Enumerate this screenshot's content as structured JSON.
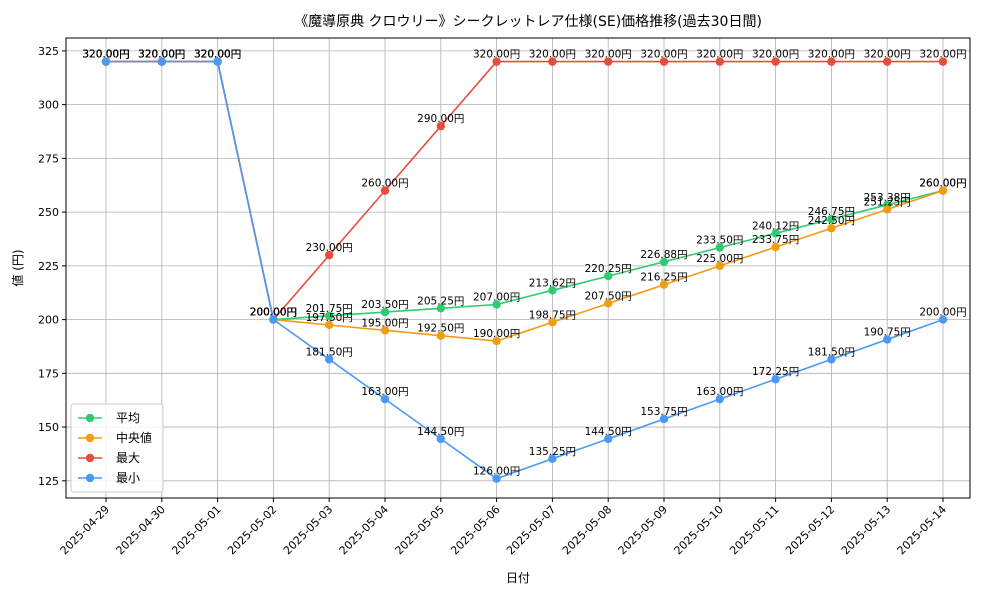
{
  "chart_data": {
    "type": "line",
    "title": "《魔導原典 クロウリー》シークレットレア仕様(SE)価格推移(過去30日間)",
    "xlabel": "日付",
    "ylabel": "値 (円)",
    "ylim": [
      117,
      331
    ],
    "yticks": [
      125,
      150,
      175,
      200,
      225,
      250,
      275,
      300,
      325
    ],
    "grid": true,
    "legend_position": "lower-left",
    "label_suffix": "円",
    "x": [
      "2025-04-29",
      "2025-04-30",
      "2025-05-01",
      "2025-05-02",
      "2025-05-03",
      "2025-05-04",
      "2025-05-05",
      "2025-05-06",
      "2025-05-07",
      "2025-05-08",
      "2025-05-09",
      "2025-05-10",
      "2025-05-11",
      "2025-05-12",
      "2025-05-13",
      "2025-05-14"
    ],
    "series": [
      {
        "name": "平均",
        "color": "#2ecc71",
        "values": [
          320.0,
          320.0,
          320.0,
          200.0,
          201.75,
          203.5,
          205.25,
          207.0,
          213.62,
          220.25,
          226.88,
          233.5,
          240.12,
          246.75,
          253.38,
          260.0
        ]
      },
      {
        "name": "中央値",
        "color": "#f39c12",
        "values": [
          320.0,
          320.0,
          320.0,
          200.0,
          197.5,
          195.0,
          192.5,
          190.0,
          198.75,
          207.5,
          216.25,
          225.0,
          233.75,
          242.5,
          251.25,
          260.0
        ]
      },
      {
        "name": "最大",
        "color": "#e74c3c",
        "values": [
          320.0,
          320.0,
          320.0,
          200.0,
          230.0,
          260.0,
          290.0,
          320.0,
          320.0,
          320.0,
          320.0,
          320.0,
          320.0,
          320.0,
          320.0,
          320.0
        ]
      },
      {
        "name": "最小",
        "color": "#4a9af5",
        "values": [
          320.0,
          320.0,
          320.0,
          200.0,
          181.5,
          163.0,
          144.5,
          126.0,
          135.25,
          144.5,
          153.75,
          163.0,
          172.25,
          181.5,
          190.75,
          200.0
        ]
      }
    ]
  }
}
